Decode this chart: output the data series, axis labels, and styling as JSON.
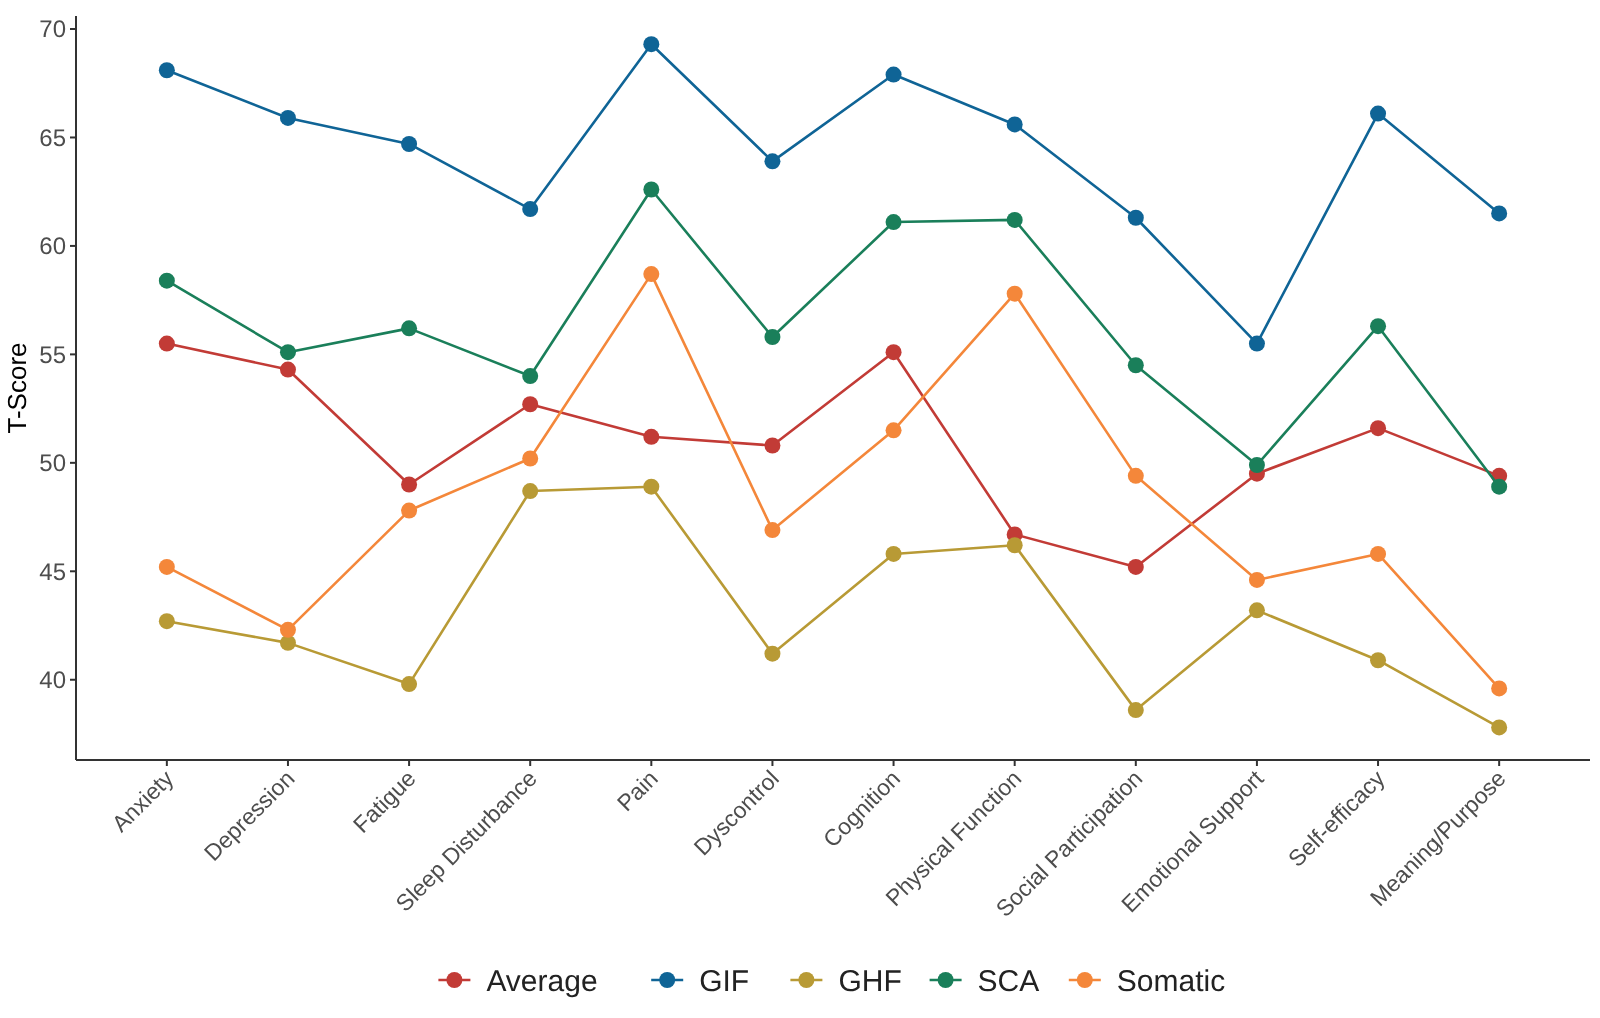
{
  "chart_data": {
    "type": "line",
    "ylabel": "T-Score",
    "categories": [
      "Anxiety",
      "Depression",
      "Fatigue",
      "Sleep Disturbance",
      "Pain",
      "Dyscontrol",
      "Cognition",
      "Physical Function",
      "Social Participation",
      "Emotional Support",
      "Self-efficacy",
      "Meaning/Purpose"
    ],
    "series": [
      {
        "name": "Average",
        "color": "#c23b36",
        "values": [
          55.5,
          54.3,
          49.0,
          52.7,
          51.2,
          50.8,
          55.1,
          46.7,
          45.2,
          49.5,
          51.6,
          49.4
        ]
      },
      {
        "name": "GIF",
        "color": "#0f6496",
        "values": [
          68.1,
          65.9,
          64.7,
          61.7,
          69.3,
          63.9,
          67.9,
          65.6,
          61.3,
          55.5,
          66.1,
          61.5
        ]
      },
      {
        "name": "GHF",
        "color": "#b89a35",
        "values": [
          42.7,
          41.7,
          39.8,
          48.7,
          48.9,
          41.2,
          45.8,
          46.2,
          38.6,
          43.2,
          40.9,
          37.8
        ]
      },
      {
        "name": "SCA",
        "color": "#1a7f5a",
        "values": [
          58.4,
          55.1,
          56.2,
          54.0,
          62.6,
          55.8,
          61.1,
          61.2,
          54.5,
          49.9,
          56.3,
          48.9
        ]
      },
      {
        "name": "Somatic",
        "color": "#f4873a",
        "values": [
          45.2,
          42.3,
          47.8,
          50.2,
          58.7,
          46.9,
          51.5,
          57.8,
          49.4,
          44.6,
          45.8,
          39.6
        ]
      }
    ],
    "ylim": [
      36.3,
      70.6
    ],
    "yticks": [
      40,
      45,
      50,
      55,
      60,
      65,
      70
    ],
    "grid": false,
    "legend": "bottom",
    "marker": "circle",
    "line_style": "solid"
  }
}
